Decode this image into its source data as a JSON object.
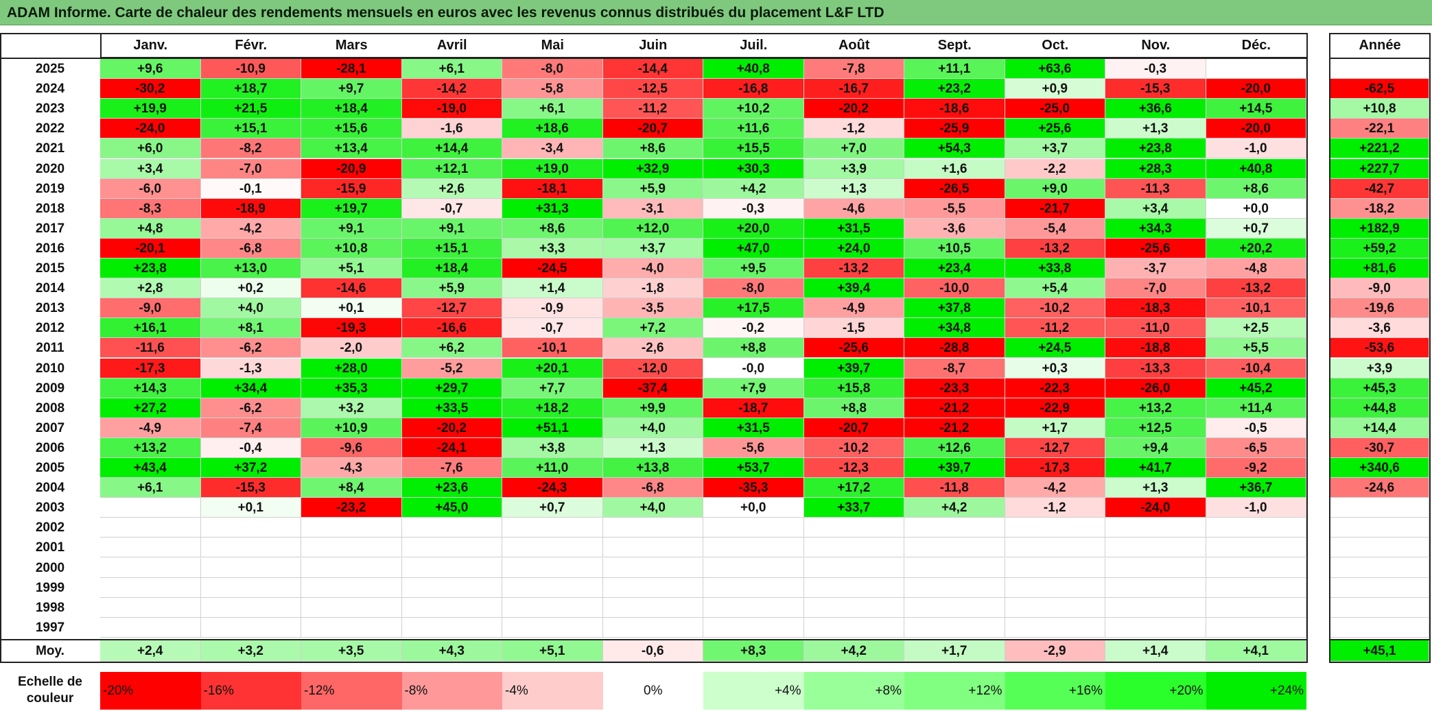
{
  "title": "ADAM Informe. Carte de chaleur des rendements mensuels en euros avec les revenus connus distribués du placement L&F LTD",
  "chart_data": {
    "type": "heatmap",
    "title": "ADAM Informe. Carte de chaleur des rendements mensuels en euros avec les revenus connus distribués du placement L&F LTD",
    "months": [
      "Janv.",
      "Févr.",
      "Mars",
      "Avril",
      "Mai",
      "Juin",
      "Juil.",
      "Août",
      "Sept.",
      "Oct.",
      "Nov.",
      "Déc."
    ],
    "annual_label": "Année",
    "average_label": "Moy.",
    "rows": [
      {
        "year": "2025",
        "values": [
          "+9,6",
          "-10,9",
          "-28,1",
          "+6,1",
          "-8,0",
          "-14,4",
          "+40,8",
          "-7,8",
          "+11,1",
          "+63,6",
          "-0,3",
          ""
        ],
        "annual": ""
      },
      {
        "year": "2024",
        "values": [
          "-30,2",
          "+18,7",
          "+9,7",
          "-14,2",
          "-5,8",
          "-12,5",
          "-16,8",
          "-16,7",
          "+23,2",
          "+0,9",
          "-15,3",
          "-20,0"
        ],
        "annual": "-62,5"
      },
      {
        "year": "2023",
        "values": [
          "+19,9",
          "+21,5",
          "+18,4",
          "-19,0",
          "+6,1",
          "-11,2",
          "+10,2",
          "-20,2",
          "-18,6",
          "-25,0",
          "+36,6",
          "+14,5"
        ],
        "annual": "+10,8"
      },
      {
        "year": "2022",
        "values": [
          "-24,0",
          "+15,1",
          "+15,6",
          "-1,6",
          "+18,6",
          "-20,7",
          "+11,6",
          "-1,2",
          "-25,9",
          "+25,6",
          "+1,3",
          "-20,0"
        ],
        "annual": "-22,1"
      },
      {
        "year": "2021",
        "values": [
          "+6,0",
          "-8,2",
          "+13,4",
          "+14,4",
          "-3,4",
          "+8,6",
          "+15,5",
          "+7,0",
          "+54,3",
          "+3,7",
          "+23,8",
          "-1,0"
        ],
        "annual": "+221,2"
      },
      {
        "year": "2020",
        "values": [
          "+3,4",
          "-7,0",
          "-20,9",
          "+12,1",
          "+19,0",
          "+32,9",
          "+30,3",
          "+3,9",
          "+1,6",
          "-2,2",
          "+28,3",
          "+40,8"
        ],
        "annual": "+227,7"
      },
      {
        "year": "2019",
        "values": [
          "-6,0",
          "-0,1",
          "-15,9",
          "+2,6",
          "-18,1",
          "+5,9",
          "+4,2",
          "+1,3",
          "-26,5",
          "+9,0",
          "-11,3",
          "+8,6"
        ],
        "annual": "-42,7"
      },
      {
        "year": "2018",
        "values": [
          "-8,3",
          "-18,9",
          "+19,7",
          "-0,7",
          "+31,3",
          "-3,1",
          "-0,3",
          "-4,6",
          "-5,5",
          "-21,7",
          "+3,4",
          "+0,0"
        ],
        "annual": "-18,2"
      },
      {
        "year": "2017",
        "values": [
          "+4,8",
          "-4,2",
          "+9,1",
          "+9,1",
          "+8,6",
          "+12,0",
          "+20,0",
          "+31,5",
          "-3,6",
          "-5,4",
          "+34,3",
          "+0,7"
        ],
        "annual": "+182,9"
      },
      {
        "year": "2016",
        "values": [
          "-20,1",
          "-6,8",
          "+10,8",
          "+15,1",
          "+3,3",
          "+3,7",
          "+47,0",
          "+24,0",
          "+10,5",
          "-13,2",
          "-25,6",
          "+20,2"
        ],
        "annual": "+59,2"
      },
      {
        "year": "2015",
        "values": [
          "+23,8",
          "+13,0",
          "+5,1",
          "+18,4",
          "-24,5",
          "-4,0",
          "+9,5",
          "-13,2",
          "+23,4",
          "+33,8",
          "-3,7",
          "-4,8"
        ],
        "annual": "+81,6"
      },
      {
        "year": "2014",
        "values": [
          "+2,8",
          "+0,2",
          "-14,6",
          "+5,9",
          "+1,4",
          "-1,8",
          "-8,0",
          "+39,4",
          "-10,0",
          "+5,4",
          "-7,0",
          "-13,2"
        ],
        "annual": "-9,0"
      },
      {
        "year": "2013",
        "values": [
          "-9,0",
          "+4,0",
          "+0,1",
          "-12,7",
          "-0,9",
          "-3,5",
          "+17,5",
          "-4,9",
          "+37,8",
          "-10,2",
          "-18,3",
          "-10,1"
        ],
        "annual": "-19,6"
      },
      {
        "year": "2012",
        "values": [
          "+16,1",
          "+8,1",
          "-19,3",
          "-16,6",
          "-0,7",
          "+7,2",
          "-0,2",
          "-1,5",
          "+34,8",
          "-11,2",
          "-11,0",
          "+2,5"
        ],
        "annual": "-3,6"
      },
      {
        "year": "2011",
        "values": [
          "-11,6",
          "-6,2",
          "-2,0",
          "+6,2",
          "-10,1",
          "-2,6",
          "+8,8",
          "-25,6",
          "-28,8",
          "+24,5",
          "-18,8",
          "+5,5"
        ],
        "annual": "-53,6"
      },
      {
        "year": "2010",
        "values": [
          "-17,3",
          "-1,3",
          "+28,0",
          "-5,2",
          "+20,1",
          "-12,0",
          "-0,0",
          "+39,7",
          "-8,7",
          "+0,3",
          "-13,3",
          "-10,4"
        ],
        "annual": "+3,9"
      },
      {
        "year": "2009",
        "values": [
          "+14,3",
          "+34,4",
          "+35,3",
          "+29,7",
          "+7,7",
          "-37,4",
          "+7,9",
          "+15,8",
          "-23,3",
          "-22,3",
          "-26,0",
          "+45,2"
        ],
        "annual": "+45,3"
      },
      {
        "year": "2008",
        "values": [
          "+27,2",
          "-6,2",
          "+3,2",
          "+33,5",
          "+18,2",
          "+9,9",
          "-18,7",
          "+8,8",
          "-21,2",
          "-22,9",
          "+13,2",
          "+11,4"
        ],
        "annual": "+44,8"
      },
      {
        "year": "2007",
        "values": [
          "-4,9",
          "-7,4",
          "+10,9",
          "-20,2",
          "+51,1",
          "+4,0",
          "+31,5",
          "-20,7",
          "-21,2",
          "+1,7",
          "+12,5",
          "-0,5"
        ],
        "annual": "+14,4"
      },
      {
        "year": "2006",
        "values": [
          "+13,2",
          "-0,4",
          "-9,6",
          "-24,1",
          "+3,8",
          "+1,3",
          "-5,6",
          "-10,2",
          "+12,6",
          "-12,7",
          "+9,4",
          "-6,5"
        ],
        "annual": "-30,7"
      },
      {
        "year": "2005",
        "values": [
          "+43,4",
          "+37,2",
          "-4,3",
          "-7,6",
          "+11,0",
          "+13,8",
          "+53,7",
          "-12,3",
          "+39,7",
          "-17,3",
          "+41,7",
          "-9,2"
        ],
        "annual": "+340,6"
      },
      {
        "year": "2004",
        "values": [
          "+6,1",
          "-15,3",
          "+8,4",
          "+23,6",
          "-24,3",
          "-6,8",
          "-35,3",
          "+17,2",
          "-11,8",
          "-4,2",
          "+1,3",
          "+36,7"
        ],
        "annual": "-24,6"
      },
      {
        "year": "2003",
        "values": [
          "",
          "+0,1",
          "-23,2",
          "+45,0",
          "+0,7",
          "+4,0",
          "+0,0",
          "+33,7",
          "+4,2",
          "-1,2",
          "-24,0",
          "-1,0"
        ],
        "annual": ""
      },
      {
        "year": "2002",
        "values": [
          "",
          "",
          "",
          "",
          "",
          "",
          "",
          "",
          "",
          "",
          "",
          ""
        ],
        "annual": ""
      },
      {
        "year": "2001",
        "values": [
          "",
          "",
          "",
          "",
          "",
          "",
          "",
          "",
          "",
          "",
          "",
          ""
        ],
        "annual": ""
      },
      {
        "year": "2000",
        "values": [
          "",
          "",
          "",
          "",
          "",
          "",
          "",
          "",
          "",
          "",
          "",
          ""
        ],
        "annual": ""
      },
      {
        "year": "1999",
        "values": [
          "",
          "",
          "",
          "",
          "",
          "",
          "",
          "",
          "",
          "",
          "",
          ""
        ],
        "annual": ""
      },
      {
        "year": "1998",
        "values": [
          "",
          "",
          "",
          "",
          "",
          "",
          "",
          "",
          "",
          "",
          "",
          ""
        ],
        "annual": ""
      },
      {
        "year": "1997",
        "values": [
          "",
          "",
          "",
          "",
          "",
          "",
          "",
          "",
          "",
          "",
          "",
          ""
        ],
        "annual": ""
      }
    ],
    "averages": [
      "+2,4",
      "+3,2",
      "+3,5",
      "+4,3",
      "+5,1",
      "-0,6",
      "+8,3",
      "+4,2",
      "+1,7",
      "-2,9",
      "+1,4",
      "+4,1"
    ],
    "average_annual": "+45,1",
    "color_scale": {
      "label": "Echelle de couleur",
      "steps": [
        "-20%",
        "-16%",
        "-12%",
        "-8%",
        "-4%",
        "0%",
        "+4%",
        "+8%",
        "+12%",
        "+16%",
        "+20%",
        "+24%"
      ],
      "colors": [
        "#ff0000",
        "#ff3333",
        "#ff6666",
        "#ff9999",
        "#ffcccc",
        "#ffffff",
        "#ccffcc",
        "#99ff99",
        "#80ff80",
        "#55ff55",
        "#2bff2b",
        "#00ee00"
      ]
    }
  }
}
